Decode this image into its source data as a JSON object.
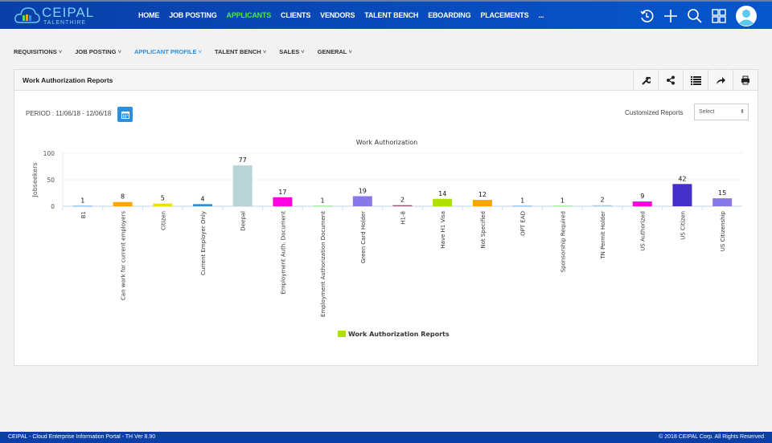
{
  "app": {
    "brand": "CEIPAL",
    "brand_sub": "TALENTHIRE"
  },
  "nav": [
    "HOME",
    "JOB POSTING",
    "APPLICANTS",
    "CLIENTS",
    "VENDORS",
    "TALENT BENCH",
    "EBOARDING",
    "PLACEMENTS",
    "..."
  ],
  "nav_active": "APPLICANTS",
  "subnav": [
    "REQUISITIONS",
    "JOB POSTING",
    "APPLICANT PROFILE",
    "TALENT BENCH",
    "SALES",
    "GENERAL"
  ],
  "subnav_active": "APPLICANT PROFILE",
  "panel": {
    "title": "Work Authorization Reports",
    "period": "PERIOD : 11/06/18 - 12/06/18",
    "customized_label": "Customized Reports",
    "select_value": "Select"
  },
  "tool_icons": [
    "wrench-icon",
    "share-icon",
    "list-icon",
    "forward-icon",
    "print-icon"
  ],
  "chart_data": {
    "type": "bar",
    "title": "Work Authorization",
    "ylabel": "Jobseekers",
    "xlabel": "",
    "ylim": [
      0,
      100
    ],
    "yticks": [
      0,
      50,
      100
    ],
    "grid": true,
    "legend": {
      "placement": "bottom",
      "entries": [
        "Work Authorization Reports"
      ],
      "color": "#b0e000"
    },
    "categories": [
      "B1",
      "Can work for current employers",
      "Citizen",
      "Current Employer Only",
      "Deepal",
      "Employment Auth. Document",
      "Employment Authorization Document",
      "Green Card Holder",
      "H1-8",
      "Have H1 Visa",
      "Not Specified",
      "OPT EAD",
      "Sponsorship Required",
      "TN Permit Holder",
      "US Authorized",
      "US Citizen",
      "US Citizenship"
    ],
    "values": [
      1,
      8,
      5,
      4,
      77,
      17,
      1,
      19,
      2,
      14,
      12,
      1,
      1,
      2,
      9,
      42,
      15
    ],
    "colors": [
      "#7cb5ec",
      "#ffa500",
      "#f0e000",
      "#2a8fd6",
      "#b8d4d4",
      "#ff00e0",
      "#90ed7d",
      "#8878e8",
      "#a05070",
      "#b0e000",
      "#ffa500",
      "#7cb5ec",
      "#90ed7d",
      "#a8cce0",
      "#ff00e0",
      "#4430c8",
      "#8878e8"
    ]
  },
  "footer": {
    "left": "CEIPAL - Cloud Enterprise Information Portal - TH Ver 8.90",
    "right": "© 2018 CEIPAL Corp. All Rights Reserved"
  }
}
